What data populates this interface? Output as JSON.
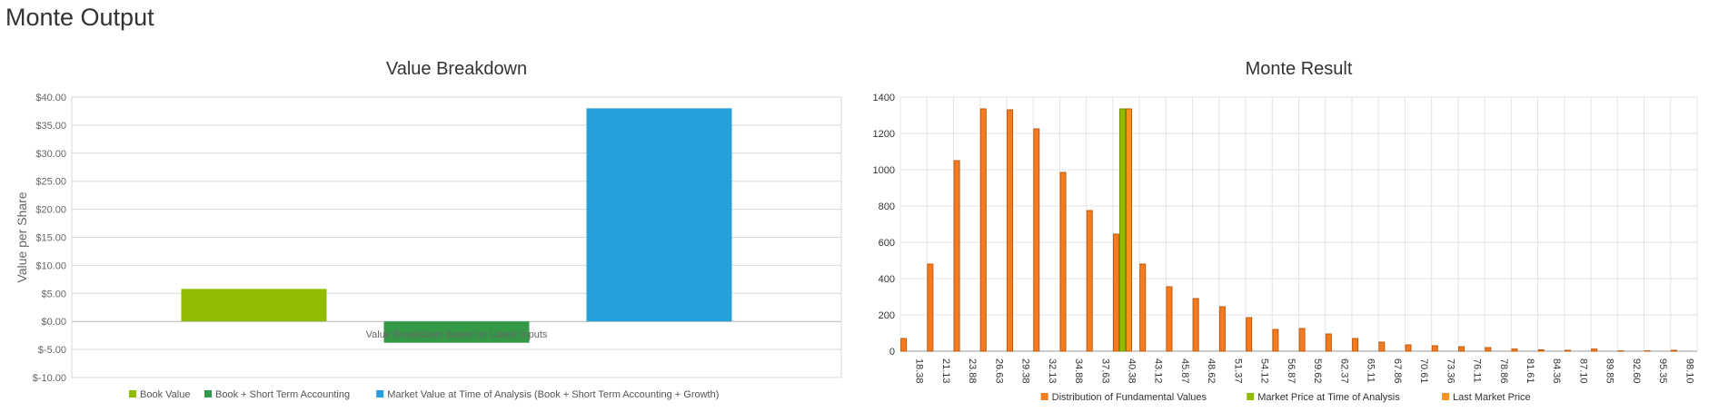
{
  "page": {
    "title": "Monte Output"
  },
  "chart_data": [
    {
      "type": "bar",
      "title": "Value Breakdown",
      "ylabel": "Value per Share",
      "xlabel": "",
      "category_label": "Value Breakdown based on Latest Inputs",
      "ylim": [
        -10,
        40
      ],
      "yticks": [
        40,
        35,
        30,
        25,
        20,
        15,
        10,
        5,
        0,
        -5,
        -10
      ],
      "ytick_labels": [
        "$40.00",
        "$35.00",
        "$30.00",
        "$25.00",
        "$20.00",
        "$15.00",
        "$10.00",
        "$5.00",
        "$0.00",
        "$-5.00",
        "$-10.00"
      ],
      "grid": true,
      "legend_position": "bottom",
      "series": [
        {
          "name": "Book Value",
          "value": 5.8,
          "color": "#8fbc00"
        },
        {
          "name": "Book + Short Term Accounting",
          "value": -3.8,
          "color": "#339947"
        },
        {
          "name": "Market Value at Time of Analysis (Book + Short Term Accounting + Growth)",
          "value": 38.0,
          "color": "#26a0da"
        }
      ]
    },
    {
      "type": "bar",
      "title": "Monte Result",
      "xlabel": "",
      "ylabel": "",
      "ylim": [
        0,
        1400
      ],
      "yticks": [
        0,
        200,
        400,
        600,
        800,
        1000,
        1200,
        1400
      ],
      "grid": true,
      "legend_position": "bottom",
      "categories": [
        "18.38",
        "21.13",
        "23.88",
        "26.63",
        "29.38",
        "32.13",
        "34.88",
        "37.63",
        "40.38",
        "43.12",
        "45.87",
        "48.62",
        "51.37",
        "54.12",
        "56.87",
        "59.62",
        "62.37",
        "65.11",
        "67.86",
        "70.61",
        "73.36",
        "76.11",
        "78.86",
        "81.61",
        "84.36",
        "87.10",
        "89.85",
        "92.60",
        "95.35",
        "98.10"
      ],
      "series": [
        {
          "name": "Distribution of Fundamental Values",
          "color": "#f47b20",
          "values": [
            70,
            480,
            1050,
            1335,
            1330,
            1225,
            985,
            775,
            645,
            480,
            355,
            290,
            245,
            185,
            120,
            125,
            95,
            70,
            50,
            35,
            30,
            25,
            20,
            12,
            8,
            5,
            12,
            2,
            2,
            5
          ]
        },
        {
          "name": "Market Price at Time of Analysis",
          "color": "#8fbc00",
          "values": [
            0,
            0,
            0,
            0,
            0,
            0,
            0,
            0,
            1335,
            0,
            0,
            0,
            0,
            0,
            0,
            0,
            0,
            0,
            0,
            0,
            0,
            0,
            0,
            0,
            0,
            0,
            0,
            0,
            0,
            0
          ]
        },
        {
          "name": "Last Market Price",
          "color": "#f7941d",
          "values": [
            0,
            0,
            0,
            0,
            0,
            0,
            0,
            0,
            1335,
            0,
            0,
            0,
            0,
            0,
            0,
            0,
            0,
            0,
            0,
            0,
            0,
            0,
            0,
            0,
            0,
            0,
            0,
            0,
            0,
            0
          ]
        }
      ]
    }
  ]
}
